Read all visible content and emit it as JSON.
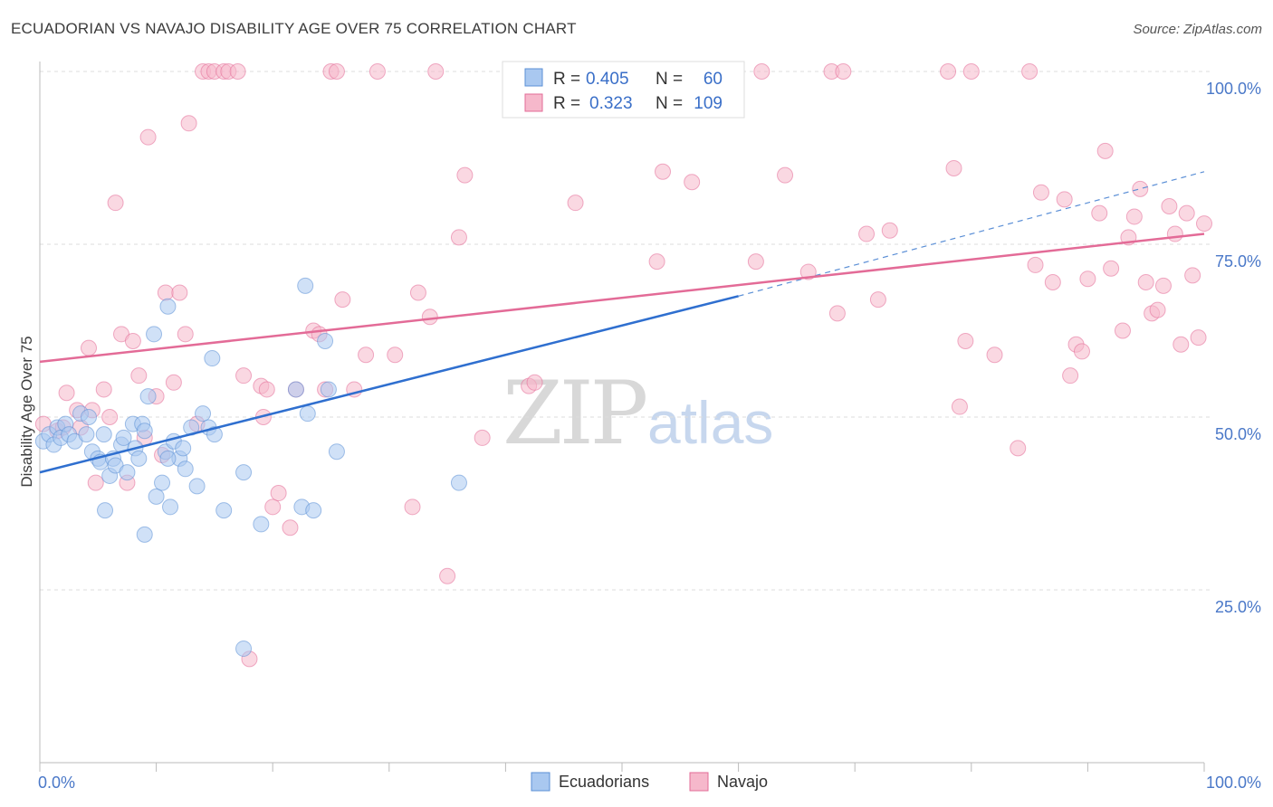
{
  "title": "ECUADORIAN VS NAVAJO DISABILITY AGE OVER 75 CORRELATION CHART",
  "source": "Source: ZipAtlas.com",
  "watermark": {
    "zip": "ZIP",
    "atlas": "atlas"
  },
  "legend": {
    "rows": [
      {
        "r_label": "R =",
        "r_value": "0.405",
        "n_label": "N =",
        "n_value": "60",
        "color": "#a9c8f0"
      },
      {
        "r_label": "R =",
        "r_value": "0.323",
        "n_label": "N =",
        "n_value": "109",
        "color": "#f6b8cb"
      }
    ]
  },
  "bottom_legend": [
    {
      "label": "Ecuadorians",
      "color": "#a9c8f0"
    },
    {
      "label": "Navajo",
      "color": "#f6b8cb"
    }
  ],
  "chart_data": {
    "type": "scatter",
    "title": "ECUADORIAN VS NAVAJO DISABILITY AGE OVER 75 CORRELATION CHART",
    "xlabel": "",
    "ylabel": "Disability Age Over 75",
    "xlim": [
      0,
      100
    ],
    "ylim": [
      0,
      100
    ],
    "x_tick_labels": [
      "0.0%",
      "100.0%"
    ],
    "y_tick_labels": [
      "100.0%",
      "75.0%",
      "50.0%",
      "25.0%"
    ],
    "y_ticks": [
      100,
      75,
      50,
      25
    ],
    "grid": true,
    "legend_position": "top-center",
    "series": [
      {
        "name": "Ecuadorians",
        "color": "#5b8fd6",
        "fill": "#a9c8f0",
        "trend": {
          "x": [
            0,
            60
          ],
          "y": [
            42,
            67.5
          ],
          "dashed_to": [
            100,
            85.5
          ]
        },
        "points": [
          [
            0.3,
            46.5
          ],
          [
            0.8,
            47.5
          ],
          [
            1.2,
            46
          ],
          [
            1.5,
            48.5
          ],
          [
            1.8,
            47
          ],
          [
            2.2,
            49
          ],
          [
            2.5,
            47.5
          ],
          [
            3,
            46.5
          ],
          [
            3.5,
            50.5
          ],
          [
            4,
            47.5
          ],
          [
            4.2,
            50
          ],
          [
            4.5,
            45
          ],
          [
            5,
            44
          ],
          [
            5.5,
            47.5
          ],
          [
            5.2,
            43.5
          ],
          [
            6,
            41.5
          ],
          [
            6.3,
            44
          ],
          [
            5.6,
            36.5
          ],
          [
            6.5,
            43
          ],
          [
            7,
            46
          ],
          [
            7.5,
            42
          ],
          [
            7.2,
            47
          ],
          [
            8.2,
            45.5
          ],
          [
            8,
            49
          ],
          [
            8.5,
            44
          ],
          [
            8.8,
            49
          ],
          [
            9,
            33
          ],
          [
            9.3,
            53
          ],
          [
            10,
            38.5
          ],
          [
            9.8,
            62
          ],
          [
            10.5,
            40.5
          ],
          [
            10.8,
            45
          ],
          [
            11,
            66
          ],
          [
            11.2,
            37
          ],
          [
            11.5,
            46.5
          ],
          [
            12,
            44
          ],
          [
            12.3,
            45.5
          ],
          [
            12.5,
            42.5
          ],
          [
            13,
            48.5
          ],
          [
            13.5,
            40
          ],
          [
            14,
            50.5
          ],
          [
            14.5,
            48.5
          ],
          [
            15,
            47.5
          ],
          [
            14.8,
            58.5
          ],
          [
            17.5,
            42
          ],
          [
            15.8,
            36.5
          ],
          [
            19,
            34.5
          ],
          [
            22,
            54
          ],
          [
            22.5,
            37
          ],
          [
            22.8,
            69
          ],
          [
            23,
            50.5
          ],
          [
            23.5,
            36.5
          ],
          [
            24.5,
            61
          ],
          [
            24.8,
            54
          ],
          [
            25.5,
            45
          ],
          [
            36,
            40.5
          ],
          [
            59.5,
            100
          ],
          [
            17.5,
            16.5
          ],
          [
            9,
            48
          ],
          [
            11,
            44
          ]
        ]
      },
      {
        "name": "Navajo",
        "color": "#e36b97",
        "fill": "#f6b8cb",
        "trend": {
          "x": [
            0,
            100
          ],
          "y": [
            58,
            76.5
          ]
        },
        "points": [
          [
            0.3,
            49
          ],
          [
            1.5,
            48
          ],
          [
            2,
            48.5
          ],
          [
            2.3,
            53.5
          ],
          [
            3.2,
            51
          ],
          [
            3.5,
            48.5
          ],
          [
            4.2,
            60
          ],
          [
            4.5,
            51
          ],
          [
            4.8,
            40.5
          ],
          [
            5.5,
            54
          ],
          [
            6,
            50
          ],
          [
            6.5,
            81
          ],
          [
            7,
            62
          ],
          [
            7.5,
            40.5
          ],
          [
            8,
            61
          ],
          [
            8.5,
            56
          ],
          [
            9,
            47
          ],
          [
            9.3,
            90.5
          ],
          [
            10,
            53
          ],
          [
            10.5,
            44.5
          ],
          [
            10.8,
            68
          ],
          [
            11.5,
            55
          ],
          [
            12,
            68
          ],
          [
            12.5,
            62
          ],
          [
            12.8,
            92.5
          ],
          [
            13.5,
            49
          ],
          [
            14,
            100
          ],
          [
            14.5,
            100
          ],
          [
            15,
            100
          ],
          [
            15.8,
            100
          ],
          [
            16.2,
            100
          ],
          [
            17,
            100
          ],
          [
            17.5,
            56
          ],
          [
            18,
            15
          ],
          [
            19,
            54.5
          ],
          [
            19.2,
            50
          ],
          [
            19.5,
            54
          ],
          [
            20,
            37
          ],
          [
            20.5,
            39
          ],
          [
            21.5,
            34
          ],
          [
            22,
            54
          ],
          [
            23.5,
            62.5
          ],
          [
            24,
            62
          ],
          [
            24.5,
            54
          ],
          [
            25,
            100
          ],
          [
            25.5,
            100
          ],
          [
            26,
            67
          ],
          [
            27,
            54
          ],
          [
            28,
            59
          ],
          [
            29,
            100
          ],
          [
            30.5,
            59
          ],
          [
            32,
            37
          ],
          [
            32.5,
            68
          ],
          [
            33.5,
            64.5
          ],
          [
            34,
            100
          ],
          [
            35,
            27
          ],
          [
            36,
            76
          ],
          [
            36.5,
            85
          ],
          [
            38,
            47
          ],
          [
            42,
            54.5
          ],
          [
            42.5,
            55
          ],
          [
            43,
            100
          ],
          [
            46,
            81
          ],
          [
            48.5,
            100
          ],
          [
            53,
            72.5
          ],
          [
            53.5,
            85.5
          ],
          [
            56,
            84
          ],
          [
            61.5,
            72.5
          ],
          [
            62,
            100
          ],
          [
            64,
            85
          ],
          [
            66,
            71
          ],
          [
            68,
            100
          ],
          [
            68.5,
            65
          ],
          [
            69,
            100
          ],
          [
            71,
            76.5
          ],
          [
            72,
            67
          ],
          [
            73,
            77
          ],
          [
            78,
            100
          ],
          [
            78.5,
            86
          ],
          [
            79,
            51.5
          ],
          [
            79.5,
            61
          ],
          [
            80,
            100
          ],
          [
            82,
            59
          ],
          [
            84,
            45.5
          ],
          [
            85,
            100
          ],
          [
            85.5,
            72
          ],
          [
            86,
            82.5
          ],
          [
            87,
            69.5
          ],
          [
            88,
            81.5
          ],
          [
            88.5,
            56
          ],
          [
            89,
            60.5
          ],
          [
            89.5,
            59.5
          ],
          [
            90,
            70
          ],
          [
            91,
            79.5
          ],
          [
            91.5,
            88.5
          ],
          [
            92,
            71.5
          ],
          [
            93,
            62.5
          ],
          [
            93.5,
            76
          ],
          [
            94,
            79
          ],
          [
            94.5,
            83
          ],
          [
            95,
            69.5
          ],
          [
            95.5,
            65
          ],
          [
            96,
            65.5
          ],
          [
            96.5,
            69
          ],
          [
            97,
            80.5
          ],
          [
            97.5,
            76.5
          ],
          [
            98,
            60.5
          ],
          [
            98.5,
            79.5
          ],
          [
            99,
            70.5
          ],
          [
            99.5,
            61.5
          ],
          [
            100,
            78
          ]
        ]
      }
    ]
  }
}
